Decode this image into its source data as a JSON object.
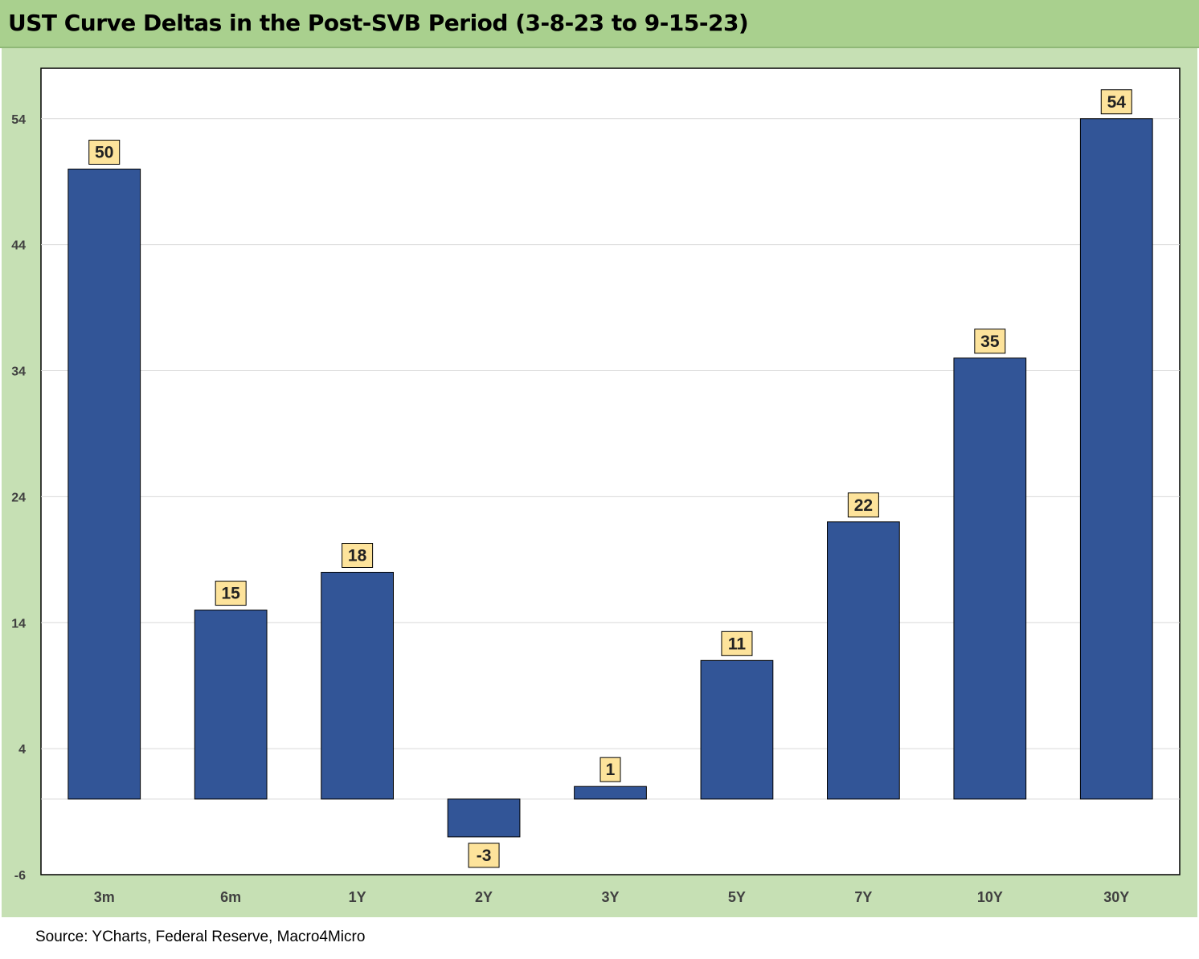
{
  "title": "UST Curve Deltas in the Post-SVB Period (3-8-23 to 9-15-23)",
  "source": "Source: YCharts, Federal Reserve, Macro4Micro",
  "colors": {
    "bar": "#325597",
    "label_bg": "#fde39b",
    "header_bg": "#a9d08e",
    "chart_bg": "#c6e0b4",
    "plot_bg": "#ffffff"
  },
  "chart_data": {
    "type": "bar",
    "categories": [
      "3m",
      "6m",
      "1Y",
      "2Y",
      "3Y",
      "5Y",
      "7Y",
      "10Y",
      "30Y"
    ],
    "values": [
      50,
      15,
      18,
      -3,
      1,
      11,
      22,
      35,
      54
    ],
    "data_labels": [
      "50",
      "15",
      "18",
      "-3",
      "1",
      "11",
      "22",
      "35",
      "54"
    ],
    "yticks": [
      -6,
      4,
      14,
      24,
      34,
      44,
      54
    ],
    "ylim": [
      -6,
      58
    ],
    "grid": true,
    "legend": "none"
  }
}
